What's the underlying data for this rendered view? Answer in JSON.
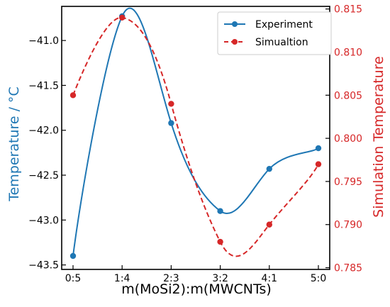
{
  "chart_data": {
    "type": "line",
    "xlabel": "m(MoSi2):m(MWCNTs)",
    "categories": [
      "0:5",
      "1:4",
      "2:3",
      "3:2",
      "4:1",
      "5:0"
    ],
    "left_axis": {
      "label": "Temperature / °C",
      "color": "#1f77b4",
      "ylim": [
        -43.55,
        -40.62
      ],
      "ticks": [
        "-41.0",
        "-41.5",
        "-42.0",
        "-42.5",
        "-43.0",
        "-43.5"
      ],
      "tick_values": [
        -41.0,
        -41.5,
        -42.0,
        -42.5,
        -43.0,
        -43.5
      ]
    },
    "right_axis": {
      "label": "Simulation Temperature",
      "color": "#d62728",
      "ylim": [
        0.7848,
        0.8153
      ],
      "ticks": [
        "0.815",
        "0.810",
        "0.805",
        "0.800",
        "0.795",
        "0.790",
        "0.785"
      ],
      "tick_values": [
        0.815,
        0.81,
        0.805,
        0.8,
        0.795,
        0.79,
        0.785
      ]
    },
    "series": [
      {
        "name": "Experiment",
        "axis": "left",
        "color": "#1f77b4",
        "line_style": "solid",
        "marker": "circle",
        "values": [
          -43.4,
          -40.73,
          -41.92,
          -42.9,
          -42.43,
          -42.2
        ]
      },
      {
        "name": "Simualtion",
        "axis": "right",
        "color": "#d62728",
        "line_style": "dashed",
        "marker": "circle",
        "values": [
          0.805,
          0.814,
          0.804,
          0.788,
          0.79,
          0.797
        ]
      }
    ],
    "legend_position": "top-right",
    "grid": false
  }
}
